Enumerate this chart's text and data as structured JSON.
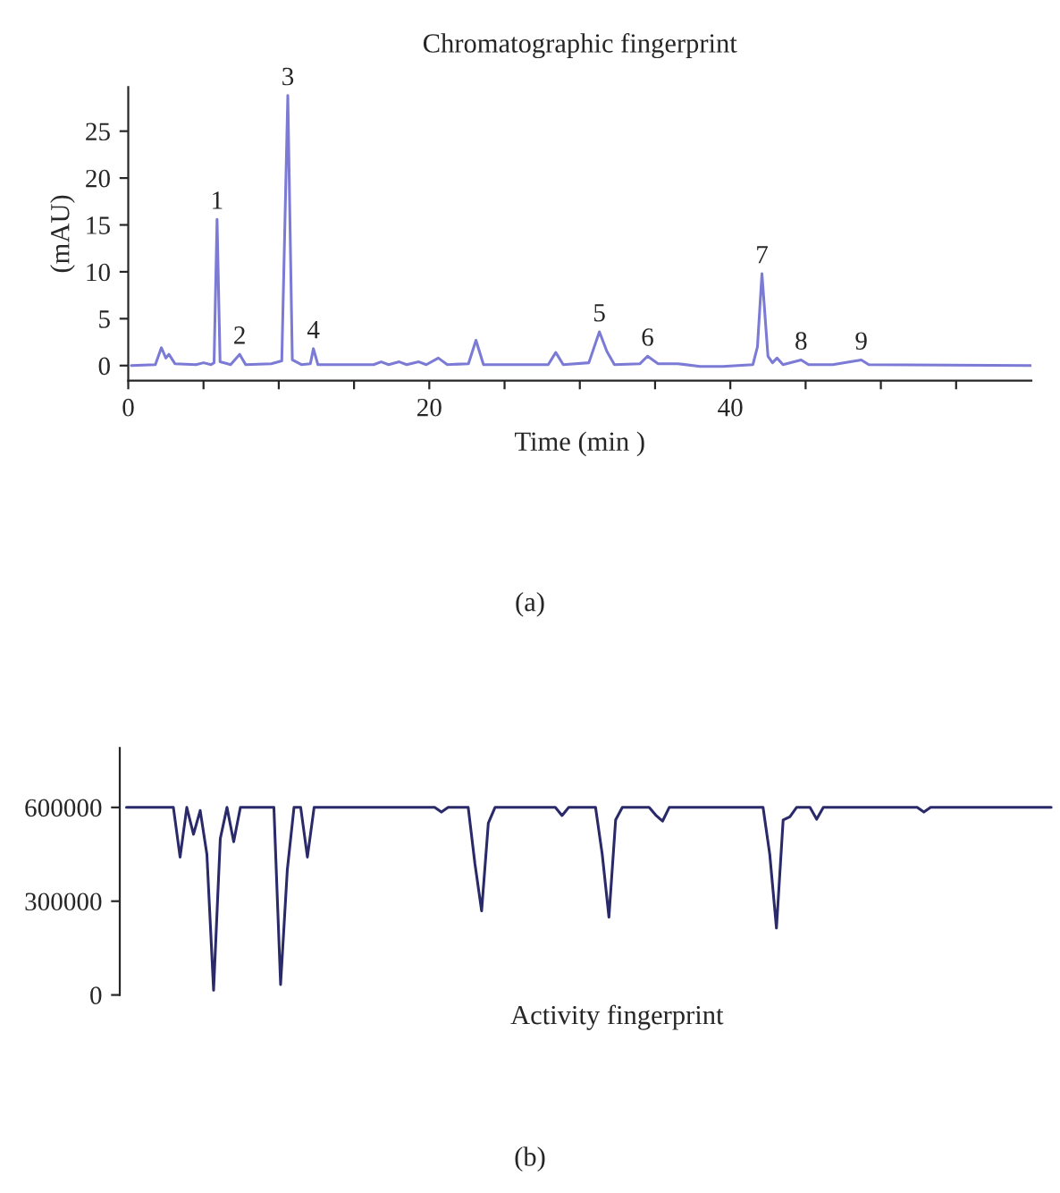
{
  "chart_data": [
    {
      "type": "line",
      "title": "Chromatographic fingerprint",
      "xlabel": "Time (min )",
      "ylabel": "(mAU)",
      "x": [
        0.2,
        1.8,
        2.2,
        2.5,
        2.7,
        3.1,
        4.5,
        5.0,
        5.5,
        5.7,
        5.9,
        6.1,
        6.8,
        7.4,
        7.8,
        9.5,
        10.2,
        10.6,
        10.9,
        11.5,
        12.1,
        12.3,
        12.6,
        16.3,
        16.8,
        17.3,
        18.0,
        18.5,
        19.3,
        19.8,
        20.6,
        21.2,
        22.6,
        23.1,
        23.6,
        27.9,
        28.4,
        28.9,
        30.6,
        31.3,
        31.8,
        32.3,
        34.0,
        34.5,
        35.2,
        36.5,
        38.0,
        39.5,
        41.5,
        41.8,
        42.1,
        42.5,
        42.8,
        43.1,
        43.5,
        44.7,
        45.2,
        46.8,
        48.7,
        49.2,
        60
      ],
      "series": [
        {
          "color": "#7b7bd6",
          "values": [
            0,
            0.1,
            1.9,
            0.8,
            1.2,
            0.2,
            0.1,
            0.3,
            0.1,
            0.3,
            15.6,
            0.4,
            0.1,
            1.2,
            0.1,
            0.2,
            0.5,
            28.8,
            0.6,
            0.1,
            0.2,
            1.8,
            0.1,
            0.1,
            0.4,
            0.1,
            0.4,
            0.1,
            0.4,
            0.1,
            0.8,
            0.1,
            0.2,
            2.7,
            0.1,
            0.1,
            1.4,
            0.1,
            0.3,
            3.6,
            1.5,
            0.1,
            0.2,
            1.0,
            0.2,
            0.2,
            -0.1,
            -0.1,
            0.1,
            2,
            9.8,
            1,
            0.3,
            0.8,
            0.1,
            0.6,
            0.1,
            0.1,
            0.6,
            0.1,
            0
          ]
        }
      ],
      "xlim": [
        0,
        60
      ],
      "ylim": [
        -1.6,
        29.7
      ],
      "xticks": [
        0,
        {
          "value": 5,
          "label": null
        },
        {
          "value": 10,
          "label": null
        },
        {
          "value": 15,
          "label": null
        },
        20,
        {
          "value": 25,
          "label": null
        },
        {
          "value": 30,
          "label": null
        },
        {
          "value": 35,
          "label": null
        },
        40,
        {
          "value": 45,
          "label": null
        },
        {
          "value": 50,
          "label": null
        },
        {
          "value": 55,
          "label": null
        }
      ],
      "yticks": [
        0,
        5,
        10,
        15,
        20,
        25
      ],
      "annotations": [
        {
          "text": "1",
          "x": 5.9,
          "y": 15.6
        },
        {
          "text": "2",
          "x": 7.4,
          "y": 1.2
        },
        {
          "text": "3",
          "x": 10.6,
          "y": 28.8
        },
        {
          "text": "4",
          "x": 12.3,
          "y": 1.8
        },
        {
          "text": "5",
          "x": 31.3,
          "y": 3.6
        },
        {
          "text": "6",
          "x": 34.5,
          "y": 1.0
        },
        {
          "text": "7",
          "x": 42.1,
          "y": 9.8
        },
        {
          "text": "8",
          "x": 44.7,
          "y": 0.6
        },
        {
          "text": "9",
          "x": 48.7,
          "y": 0.6
        },
        "(a)"
      ],
      "grid": false,
      "legend": false
    },
    {
      "type": "line",
      "title": "Activity fingerprint",
      "categories": [
        null,
        null,
        null,
        null,
        null,
        null,
        null,
        null,
        null,
        null,
        null,
        null,
        null,
        null,
        null,
        null,
        null,
        null,
        null,
        null,
        null,
        null,
        null,
        null,
        null,
        null,
        null,
        null,
        null,
        null,
        null,
        null,
        null,
        null,
        null,
        null,
        null,
        null,
        null,
        null,
        null,
        null,
        null,
        null,
        null,
        null,
        null,
        null,
        null,
        null,
        null,
        null,
        null,
        null,
        null,
        null,
        null,
        null,
        null,
        null,
        null,
        null,
        null,
        null,
        null,
        null,
        null,
        null,
        null,
        null,
        null,
        null,
        null,
        null,
        null,
        null,
        null,
        null,
        null,
        null,
        null,
        null,
        null,
        null,
        null,
        null,
        null,
        null,
        null,
        null,
        null,
        null,
        null,
        null,
        null,
        null,
        null,
        null,
        null,
        null,
        null,
        null,
        null,
        null,
        null,
        null,
        null,
        null,
        null,
        null,
        null,
        null,
        null,
        null,
        null,
        null,
        null,
        null,
        null,
        null,
        null,
        null,
        null,
        null,
        null,
        null,
        null,
        null,
        null,
        null,
        null,
        null,
        null,
        null,
        null,
        null,
        null,
        null,
        null
      ],
      "series": [
        {
          "color": "#2a2a6a",
          "values": [
            600000,
            600000,
            600000,
            600000,
            600000,
            600000,
            600000,
            600000,
            441000,
            600000,
            514000,
            590000,
            450000,
            15000,
            500000,
            600000,
            490000,
            600000,
            600000,
            600000,
            600000,
            600000,
            600000,
            33000,
            400000,
            600000,
            600000,
            441000,
            600000,
            600000,
            600000,
            600000,
            600000,
            600000,
            600000,
            600000,
            600000,
            600000,
            600000,
            600000,
            600000,
            600000,
            600000,
            600000,
            600000,
            600000,
            600000,
            585000,
            600000,
            600000,
            600000,
            600000,
            420000,
            269000,
            550000,
            600000,
            600000,
            600000,
            600000,
            600000,
            600000,
            600000,
            600000,
            600000,
            600000,
            574000,
            600000,
            600000,
            600000,
            600000,
            600000,
            450000,
            249000,
            560000,
            600000,
            600000,
            600000,
            600000,
            600000,
            575000,
            556000,
            600000,
            600000,
            600000,
            600000,
            600000,
            600000,
            600000,
            600000,
            600000,
            600000,
            600000,
            600000,
            600000,
            600000,
            600000,
            450000,
            214000,
            560000,
            570000,
            600000,
            600000,
            600000,
            562000,
            600000,
            600000,
            600000,
            600000,
            600000,
            600000,
            600000,
            600000,
            600000,
            600000,
            600000,
            600000,
            600000,
            600000,
            600000,
            585000,
            600000,
            600000,
            600000,
            600000,
            600000,
            600000,
            600000,
            600000,
            600000,
            600000,
            600000,
            600000,
            600000,
            600000,
            600000,
            600000,
            600000,
            600000,
            600000
          ]
        }
      ],
      "ylim": [
        0,
        790000
      ],
      "yticks": [
        0,
        300000,
        600000
      ],
      "tick_labels": "y",
      "annotations": [
        "(b)"
      ],
      "grid": false,
      "legend": false
    }
  ]
}
